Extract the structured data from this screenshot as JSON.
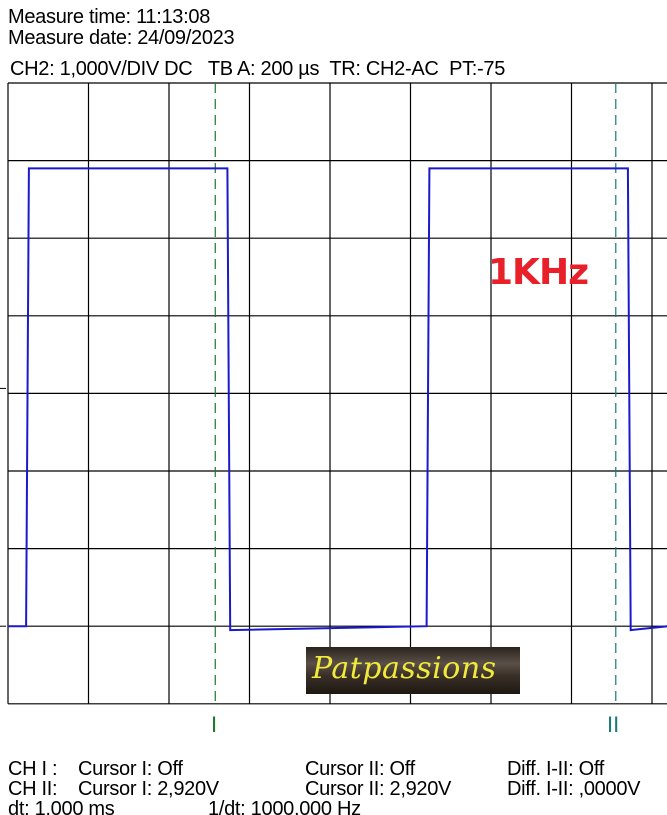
{
  "header": {
    "measure_time": "Measure time: 11:13:08",
    "measure_date": "Measure date: 24/09/2023",
    "settings": "CH2: 1,000V/DIV DC   TB A: 200 µs  TR: CH2-AC  PT:-75"
  },
  "annotation": {
    "label": "1KHz",
    "color": "#e8202a"
  },
  "logo": {
    "text": "Patpassions"
  },
  "cursors": {
    "cursor1_label": "I",
    "cursor1_color": "#1a7a2a",
    "cursor2_label": "II",
    "cursor2_color": "#1a7a7a"
  },
  "footer": {
    "row1": {
      "ch": "CH I :",
      "c1": "Cursor I: Off",
      "c2": "Cursor II: Off",
      "diff": "Diff. I-II: Off"
    },
    "row2": {
      "ch": "CH II:",
      "c1": "Cursor I: 2,920V",
      "c2": "Cursor II: 2,920V",
      "diff": "Diff. I-II: ,0000V"
    },
    "row3": {
      "dt": "dt: 1,000 ms",
      "inv": "1/dt: 1000,000 Hz"
    }
  },
  "chart_data": {
    "type": "line",
    "title": "",
    "xlabel": "",
    "ylabel": "",
    "x_unit": "µs",
    "y_unit": "V",
    "xlim": [
      0,
      1640
    ],
    "ylim": [
      -1,
      7
    ],
    "grid": true,
    "trace_color": "#1a1acc",
    "series": [
      {
        "x": [
          0,
          45,
          52,
          545,
          552,
          1040,
          1047,
          1540,
          1547,
          1640
        ],
        "y": [
          0,
          0,
          5.9,
          5.9,
          -0.05,
          0,
          5.9,
          5.9,
          -0.05,
          0
        ]
      }
    ],
    "cursor_positions_us": [
      515,
      1510
    ]
  }
}
